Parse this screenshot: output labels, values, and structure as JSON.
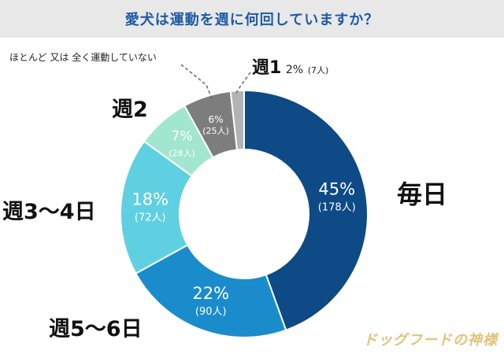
{
  "chart_data": {
    "type": "pie",
    "donut": true,
    "title": "愛犬は運動を週に何回していますか？",
    "slices": [
      {
        "label": "毎日",
        "percent": "45%",
        "count": "(178人)",
        "value": 178,
        "color": "#0d4a86"
      },
      {
        "label": "週5〜6日",
        "percent": "22%",
        "count": "(90人)",
        "value": 90,
        "color": "#1a8ccc"
      },
      {
        "label": "週3〜4日",
        "percent": "18%",
        "count": "(72人)",
        "value": 72,
        "color": "#5fd0e2"
      },
      {
        "label": "週2",
        "percent": "7%",
        "count": "(28人)",
        "value": 28,
        "color": "#a3e6d0"
      },
      {
        "label": "ほとんど 又は 全く運動していない",
        "percent": "6%",
        "count": "(25人)",
        "value": 25,
        "color": "#7d7d7d"
      },
      {
        "label": "週1",
        "percent": "2%",
        "count": "(7人)",
        "value": 7,
        "color": "#b3b3b3"
      }
    ],
    "legend_position": "outside-labels"
  },
  "watermark": "ドッグフードの神様"
}
